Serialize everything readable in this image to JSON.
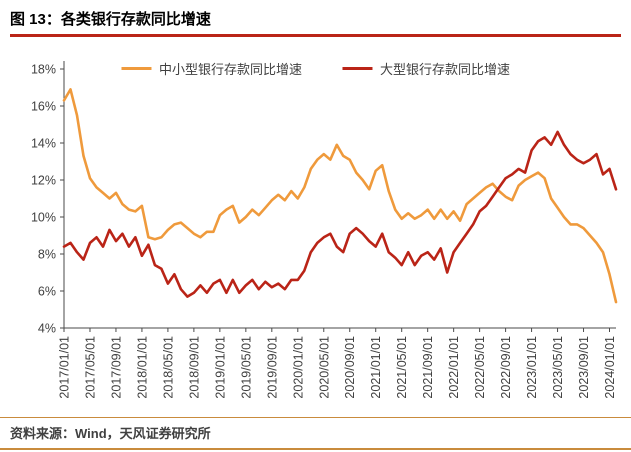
{
  "header": {
    "title": "图 13：各类银行存款同比增速"
  },
  "footer": {
    "source": "资料来源：Wind，天风证券研究所"
  },
  "colors": {
    "accent_orange": "#EF9A3C",
    "accent_red": "#BA2417",
    "title_rule": "#BA2417",
    "footer_rule": "#C98B3C",
    "axis": "#4A4A4A",
    "label_text": "#404040"
  },
  "chart_data": {
    "type": "line",
    "title": "各类银行存款同比增速",
    "xlabel": "",
    "ylabel": "",
    "grid": false,
    "legend_position": "top-center",
    "ylim": [
      4,
      18
    ],
    "ytick_step": 2,
    "ytick_labels": [
      "4%",
      "6%",
      "8%",
      "10%",
      "12%",
      "14%",
      "16%",
      "18%"
    ],
    "xtick_step": 4,
    "xtick_labels": [
      "2017/01/01",
      "2017/05/01",
      "2017/09/01",
      "2018/01/01",
      "2018/05/01",
      "2018/09/01",
      "2019/01/01",
      "2019/05/01",
      "2019/09/01",
      "2020/01/01",
      "2020/05/01",
      "2020/09/01",
      "2021/01/01",
      "2021/05/01",
      "2021/09/01",
      "2022/01/01",
      "2022/05/01",
      "2022/09/01",
      "2023/01/01",
      "2023/05/01",
      "2023/09/01",
      "2024/01/01"
    ],
    "x": [
      "2017/01",
      "2017/02",
      "2017/03",
      "2017/04",
      "2017/05",
      "2017/06",
      "2017/07",
      "2017/08",
      "2017/09",
      "2017/10",
      "2017/11",
      "2017/12",
      "2018/01",
      "2018/02",
      "2018/03",
      "2018/04",
      "2018/05",
      "2018/06",
      "2018/07",
      "2018/08",
      "2018/09",
      "2018/10",
      "2018/11",
      "2018/12",
      "2019/01",
      "2019/02",
      "2019/03",
      "2019/04",
      "2019/05",
      "2019/06",
      "2019/07",
      "2019/08",
      "2019/09",
      "2019/10",
      "2019/11",
      "2019/12",
      "2020/01",
      "2020/02",
      "2020/03",
      "2020/04",
      "2020/05",
      "2020/06",
      "2020/07",
      "2020/08",
      "2020/09",
      "2020/10",
      "2020/11",
      "2020/12",
      "2021/01",
      "2021/02",
      "2021/03",
      "2021/04",
      "2021/05",
      "2021/06",
      "2021/07",
      "2021/08",
      "2021/09",
      "2021/10",
      "2021/11",
      "2021/12",
      "2022/01",
      "2022/02",
      "2022/03",
      "2022/04",
      "2022/05",
      "2022/06",
      "2022/07",
      "2022/08",
      "2022/09",
      "2022/10",
      "2022/11",
      "2022/12",
      "2023/01",
      "2023/02",
      "2023/03",
      "2023/04",
      "2023/05",
      "2023/06",
      "2023/07",
      "2023/08",
      "2023/09",
      "2023/10",
      "2023/11",
      "2023/12",
      "2024/01",
      "2024/02"
    ],
    "series": [
      {
        "name": "中小型银行存款同比增速",
        "color": "#EF9A3C",
        "values": [
          16.3,
          16.9,
          15.5,
          13.3,
          12.1,
          11.6,
          11.3,
          11.0,
          11.3,
          10.7,
          10.4,
          10.3,
          10.6,
          8.9,
          8.8,
          8.9,
          9.3,
          9.6,
          9.7,
          9.4,
          9.1,
          8.9,
          9.2,
          9.2,
          10.1,
          10.4,
          10.6,
          9.7,
          10.0,
          10.4,
          10.1,
          10.5,
          10.9,
          11.2,
          10.9,
          11.4,
          11.0,
          11.6,
          12.6,
          13.1,
          13.4,
          13.1,
          13.9,
          13.3,
          13.1,
          12.4,
          12.0,
          11.5,
          12.5,
          12.8,
          11.4,
          10.4,
          9.9,
          10.2,
          9.9,
          10.1,
          10.4,
          9.9,
          10.4,
          9.9,
          10.3,
          9.8,
          10.7,
          11.0,
          11.3,
          11.6,
          11.8,
          11.4,
          11.1,
          10.9,
          11.7,
          12.0,
          12.2,
          12.4,
          12.1,
          11.0,
          10.5,
          10.0,
          9.6,
          9.6,
          9.4,
          9.0,
          8.6,
          8.1,
          6.9,
          5.4
        ]
      },
      {
        "name": "大型银行存款同比增速",
        "color": "#BA2417",
        "values": [
          8.4,
          8.6,
          8.1,
          7.7,
          8.6,
          8.9,
          8.4,
          9.3,
          8.7,
          9.1,
          8.4,
          8.9,
          7.9,
          8.5,
          7.4,
          7.2,
          6.4,
          6.9,
          6.1,
          5.7,
          5.9,
          6.3,
          5.9,
          6.4,
          6.6,
          5.9,
          6.6,
          5.9,
          6.3,
          6.6,
          6.1,
          6.5,
          6.2,
          6.4,
          6.1,
          6.6,
          6.6,
          7.1,
          8.1,
          8.6,
          8.9,
          9.1,
          8.4,
          8.1,
          9.1,
          9.4,
          9.1,
          8.7,
          8.4,
          9.1,
          8.1,
          7.8,
          7.4,
          8.1,
          7.4,
          7.9,
          8.1,
          7.7,
          8.3,
          7.0,
          8.1,
          8.6,
          9.1,
          9.6,
          10.3,
          10.6,
          11.1,
          11.6,
          12.1,
          12.3,
          12.6,
          12.4,
          13.6,
          14.1,
          14.3,
          13.9,
          14.6,
          13.9,
          13.4,
          13.1,
          12.9,
          13.1,
          13.4,
          12.3,
          12.6,
          11.5
        ]
      }
    ]
  }
}
